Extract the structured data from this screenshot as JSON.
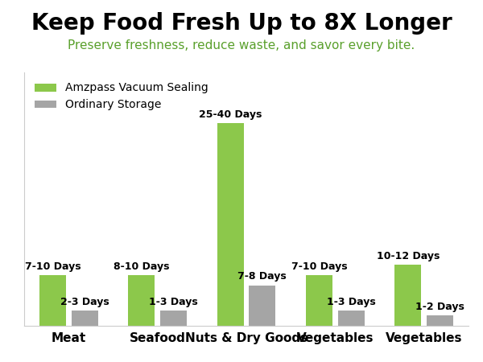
{
  "chart_data": {
    "type": "bar",
    "title": "Keep Food Fresh Up to 8X Longer",
    "subtitle": "Preserve freshness, reduce waste, and savor every bite.",
    "categories": [
      "Meat",
      "Seafood",
      "Nuts & Dry Goods",
      "Vegetables",
      "Vegetables"
    ],
    "series": [
      {
        "name": "Amzpass Vacuum Sealing",
        "color": "#8cc84b",
        "values": [
          10,
          10,
          40,
          10,
          12
        ],
        "value_labels": [
          "7-10 Days",
          "8-10 Days",
          "25-40 Days",
          "7-10 Days",
          "10-12 Days"
        ]
      },
      {
        "name": "Ordinary Storage",
        "color": "#a5a5a5",
        "values": [
          3,
          3,
          8,
          3,
          2
        ],
        "value_labels": [
          "2-3 Days",
          "1-3 Days",
          "7-8 Days",
          "1-3 Days",
          "1-2 Days"
        ]
      }
    ],
    "ylim": [
      0,
      50
    ],
    "yticks": [],
    "legend": "upper left",
    "data_labels": true,
    "tick_labels": "x",
    "grid": false
  }
}
